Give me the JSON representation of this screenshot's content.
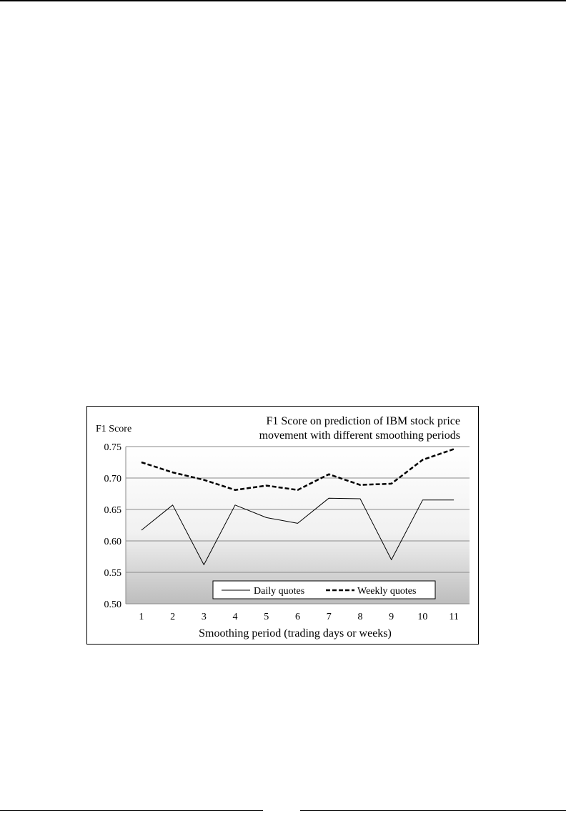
{
  "chart_data": {
    "type": "line",
    "title_lines": [
      "F1 Score on prediction of IBM stock price",
      "movement with different smoothing periods"
    ],
    "ylabel": "F1 Score",
    "xlabel": "Smoothing period  (trading days or weeks)",
    "x": [
      1,
      2,
      3,
      4,
      5,
      6,
      7,
      8,
      9,
      10,
      11
    ],
    "ylim": [
      0.5,
      0.75
    ],
    "yticks": [
      "0.50",
      "0.55",
      "0.60",
      "0.65",
      "0.70",
      "0.75"
    ],
    "grid": true,
    "legend_position": "bottom-right",
    "series": [
      {
        "name": "Daily quotes",
        "style": "solid",
        "color": "#000000",
        "values": [
          0.617,
          0.657,
          0.562,
          0.657,
          0.637,
          0.628,
          0.668,
          0.667,
          0.57,
          0.665,
          0.665
        ]
      },
      {
        "name": "Weekly quotes",
        "style": "dashed",
        "color": "#000000",
        "values": [
          0.725,
          0.709,
          0.697,
          0.681,
          0.688,
          0.681,
          0.706,
          0.689,
          0.691,
          0.729,
          0.746
        ]
      }
    ]
  }
}
